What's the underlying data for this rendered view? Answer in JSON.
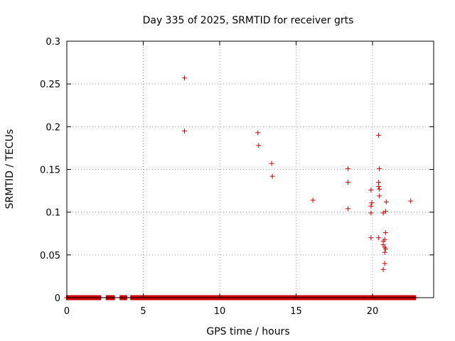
{
  "chart_data": {
    "type": "scatter",
    "title": "Day 335 of 2025, SRMTID for receiver grts",
    "xlabel": "GPS time / hours",
    "ylabel": "SRMTID / TECUs",
    "xlim": [
      0,
      24
    ],
    "ylim": [
      0,
      0.3
    ],
    "xticks": [
      0,
      5,
      10,
      15,
      20
    ],
    "xtick_labels": [
      "0",
      "5",
      "10",
      "15",
      "20"
    ],
    "yticks": [
      0,
      0.05,
      0.1,
      0.15,
      0.2,
      0.25,
      0.3
    ],
    "ytick_labels": [
      "0",
      "0.05",
      "0.1",
      "0.15",
      "0.2",
      "0.25",
      "0.3"
    ],
    "grid": true,
    "marker": "+",
    "color": "#cc0000",
    "series": [
      {
        "name": "SRMTID",
        "points": [
          [
            7.7,
            0.257
          ],
          [
            7.7,
            0.195
          ],
          [
            12.5,
            0.193
          ],
          [
            12.55,
            0.178
          ],
          [
            13.4,
            0.157
          ],
          [
            13.45,
            0.142
          ],
          [
            16.1,
            0.114
          ],
          [
            18.4,
            0.151
          ],
          [
            18.4,
            0.135
          ],
          [
            18.4,
            0.104
          ],
          [
            19.9,
            0.126
          ],
          [
            19.95,
            0.111
          ],
          [
            19.9,
            0.107
          ],
          [
            19.9,
            0.099
          ],
          [
            19.9,
            0.07
          ],
          [
            20.4,
            0.19
          ],
          [
            20.45,
            0.151
          ],
          [
            20.4,
            0.135
          ],
          [
            20.4,
            0.13
          ],
          [
            20.45,
            0.127
          ],
          [
            20.45,
            0.119
          ],
          [
            20.4,
            0.07
          ],
          [
            20.7,
            0.099
          ],
          [
            20.85,
            0.101
          ],
          [
            20.9,
            0.112
          ],
          [
            20.85,
            0.076
          ],
          [
            20.7,
            0.066
          ],
          [
            20.8,
            0.068
          ],
          [
            20.7,
            0.062
          ],
          [
            20.8,
            0.059
          ],
          [
            20.85,
            0.057
          ],
          [
            20.8,
            0.053
          ],
          [
            20.8,
            0.04
          ],
          [
            20.7,
            0.033
          ],
          [
            22.5,
            0.113
          ]
        ]
      }
    ],
    "baseline": {
      "y": 0,
      "segments": [
        [
          0.0,
          2.2
        ],
        [
          2.6,
          3.1
        ],
        [
          3.5,
          3.9
        ],
        [
          4.2,
          22.8
        ]
      ]
    }
  }
}
